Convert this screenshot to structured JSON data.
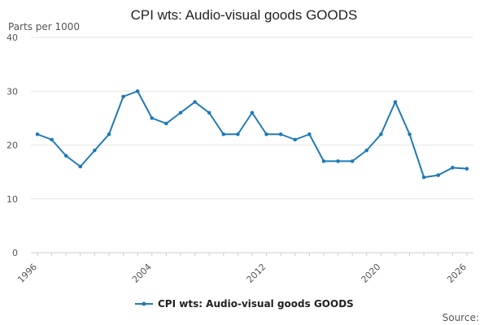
{
  "chart_data": {
    "type": "line",
    "title": "CPI wts: Audio-visual goods GOODS",
    "ylabel": "Parts per 1000",
    "xlabel": "",
    "xlim": [
      1996,
      2026
    ],
    "ylim": [
      0,
      40
    ],
    "y_ticks": [
      0,
      10,
      20,
      30,
      40
    ],
    "x_ticks": [
      1996,
      2004,
      2012,
      2020,
      2026
    ],
    "grid": "horizontal",
    "legend_position": "bottom",
    "source_label": "Source:",
    "series": [
      {
        "name": "CPI wts: Audio-visual goods GOODS",
        "color": "#1f7ab6",
        "x": [
          1996,
          1997,
          1998,
          1999,
          2000,
          2001,
          2002,
          2003,
          2004,
          2005,
          2006,
          2007,
          2008,
          2009,
          2010,
          2011,
          2012,
          2013,
          2014,
          2015,
          2016,
          2017,
          2018,
          2019,
          2020,
          2021,
          2022,
          2023,
          2024,
          2025,
          2026
        ],
        "values": [
          22,
          21,
          18,
          16,
          19,
          22,
          29,
          30,
          25,
          24,
          26,
          28,
          26,
          22,
          22,
          26,
          22,
          22,
          21,
          22,
          17,
          17,
          17,
          19,
          22,
          28,
          22,
          14,
          14.4,
          15.8,
          15.6
        ]
      }
    ]
  }
}
